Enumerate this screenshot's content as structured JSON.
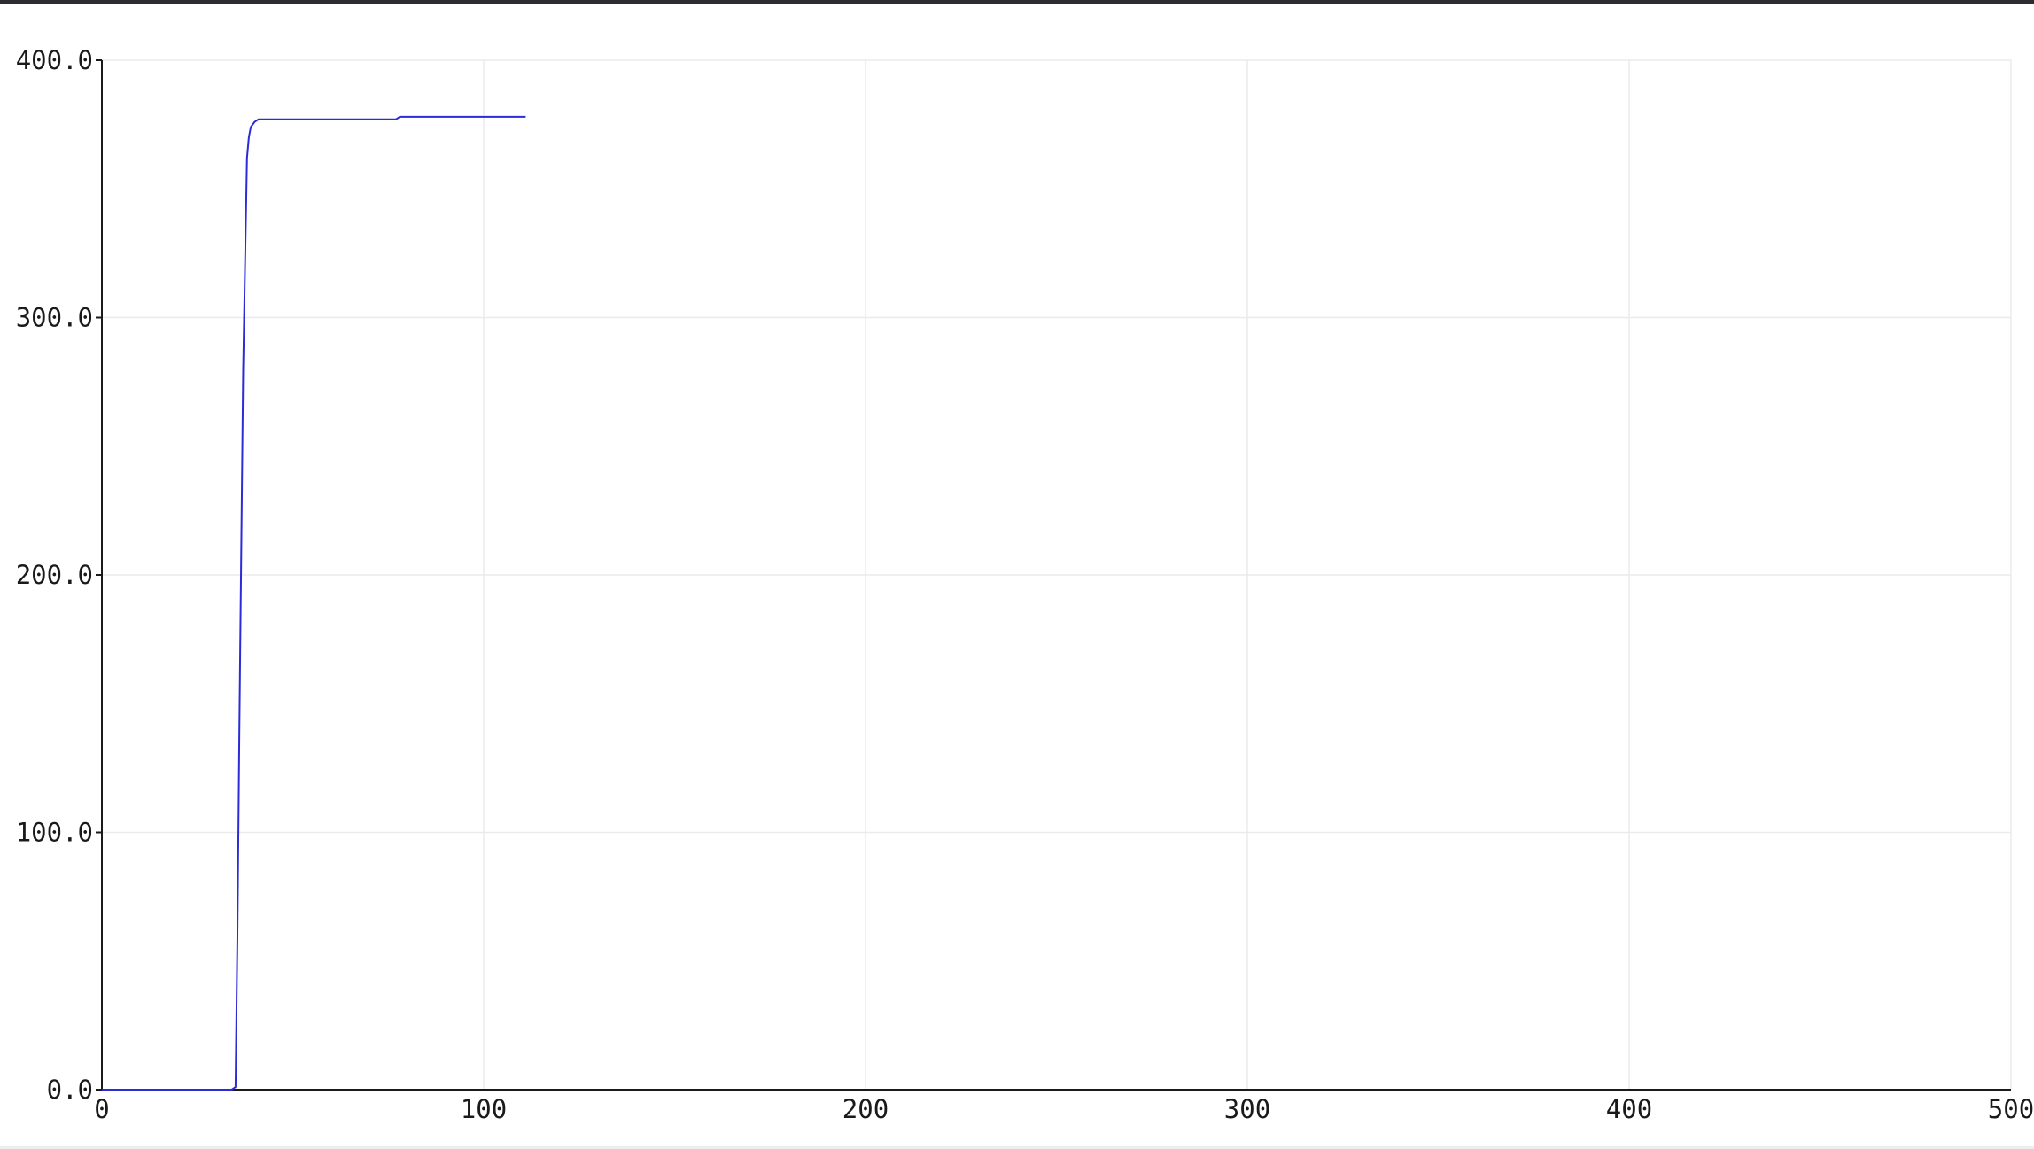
{
  "chart_data": {
    "type": "line",
    "title": "",
    "xlabel": "",
    "ylabel": "",
    "xlim": [
      0,
      500
    ],
    "ylim": [
      0,
      400
    ],
    "grid": true,
    "x_ticks": [
      0,
      100,
      200,
      300,
      400,
      500
    ],
    "x_tick_labels": [
      "0",
      "100",
      "200",
      "300",
      "400",
      "500"
    ],
    "y_ticks": [
      0,
      100,
      200,
      300,
      400
    ],
    "y_tick_labels": [
      "0.0",
      "100.0",
      "200.0",
      "300.0",
      "400.0"
    ],
    "series": [
      {
        "color": "#2b2bd9",
        "x": [
          0,
          34,
          35,
          35.5,
          36,
          37,
          38,
          38.5,
          39,
          40,
          41,
          60,
          77,
          78,
          79,
          100,
          111
        ],
        "y": [
          0,
          0,
          1,
          60,
          140,
          280,
          362,
          370,
          374,
          376,
          377,
          377,
          377,
          378,
          378,
          378,
          378
        ]
      }
    ]
  }
}
